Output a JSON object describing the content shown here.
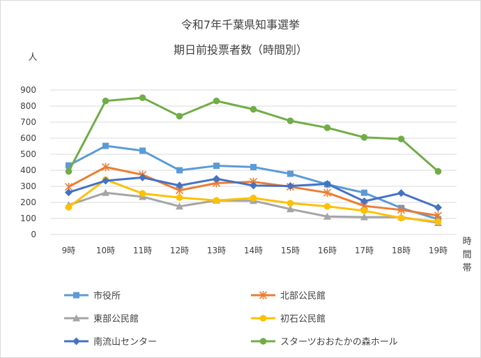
{
  "chart_data": {
    "type": "line",
    "title": "令和7年千葉県知事選挙",
    "subtitle": "期日前投票者数（時間別）",
    "ylabel": "人",
    "xlabel": "時間帯",
    "ylim": [
      0,
      900
    ],
    "yticks": [
      0,
      100,
      200,
      300,
      400,
      500,
      600,
      700,
      800,
      900
    ],
    "grid": true,
    "legend_position": "bottom",
    "categories": [
      "9時",
      "10時",
      "11時",
      "12時",
      "13時",
      "14時",
      "15時",
      "16時",
      "17時",
      "18時",
      "19時"
    ],
    "series": [
      {
        "name": "市役所",
        "color": "#5b9bd5",
        "marker": "square",
        "values": [
          430,
          552,
          522,
          400,
          428,
          420,
          378,
          312,
          260,
          165,
          95
        ]
      },
      {
        "name": "北部公民館",
        "color": "#ed7d31",
        "marker": "asterisk",
        "values": [
          297,
          420,
          372,
          275,
          320,
          328,
          297,
          260,
          178,
          153,
          118
        ]
      },
      {
        "name": "東部公民館",
        "color": "#a5a5a5",
        "marker": "triangle",
        "values": [
          183,
          260,
          235,
          175,
          212,
          210,
          158,
          112,
          108,
          108,
          72
        ]
      },
      {
        "name": "初石公民館",
        "color": "#ffc000",
        "marker": "circle",
        "values": [
          170,
          342,
          255,
          230,
          212,
          227,
          195,
          175,
          148,
          103,
          80
        ]
      },
      {
        "name": "南流山センター",
        "color": "#4472c4",
        "marker": "diamond",
        "values": [
          262,
          335,
          355,
          305,
          347,
          305,
          302,
          315,
          207,
          258,
          168
        ]
      },
      {
        "name": "スターツおおたかの森ホール",
        "color": "#70ad47",
        "marker": "circle",
        "values": [
          393,
          832,
          852,
          737,
          832,
          780,
          708,
          665,
          605,
          595,
          393
        ]
      }
    ]
  }
}
